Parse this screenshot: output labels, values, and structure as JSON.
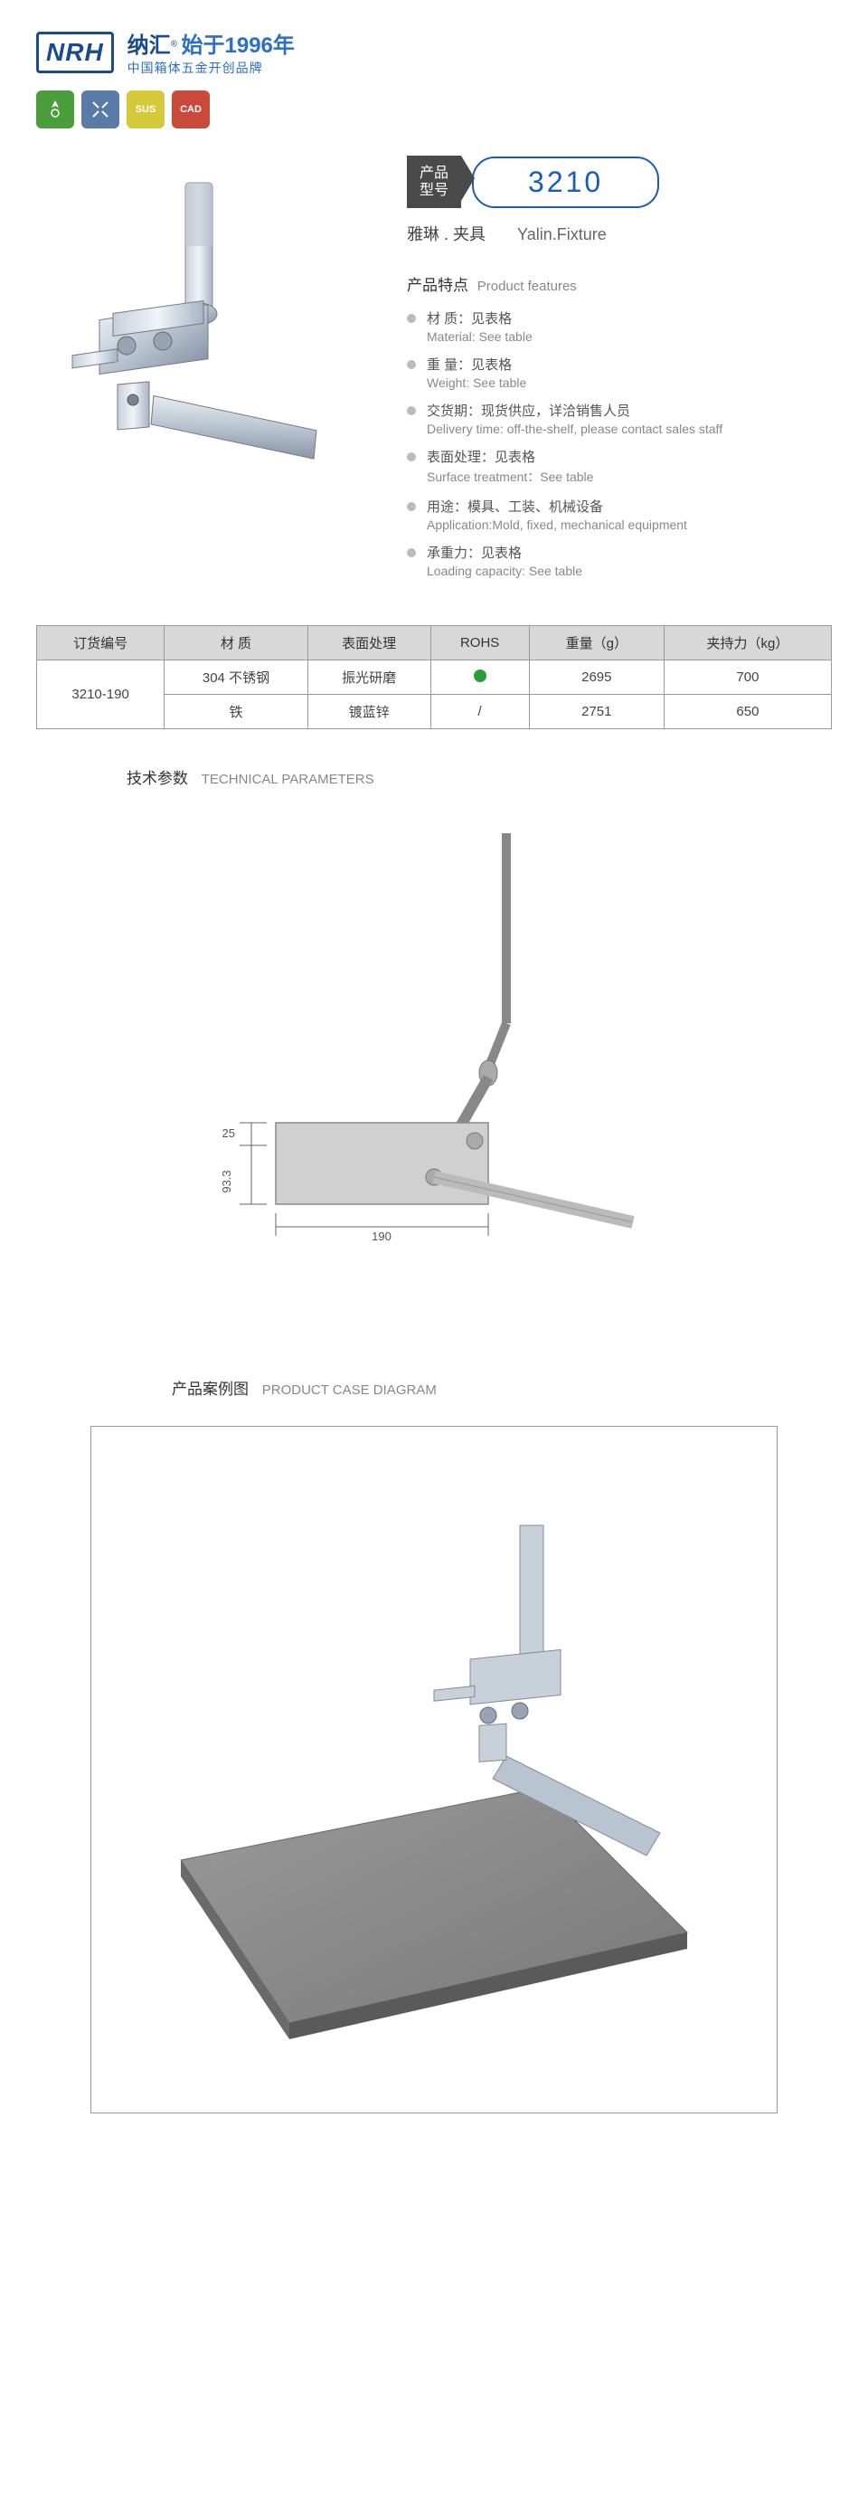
{
  "header": {
    "logo": "NRH",
    "brand_cn": "纳汇",
    "brand_year": "始于1996年",
    "brand_sub": "中国箱体五金开创品牌"
  },
  "badges": [
    {
      "label": "",
      "color": "badge-green"
    },
    {
      "label": "",
      "color": "badge-blue"
    },
    {
      "label": "SUS",
      "color": "badge-yellow"
    },
    {
      "label": "CAD",
      "color": "badge-red"
    }
  ],
  "model": {
    "label_line1": "产品",
    "label_line2": "型号",
    "number": "3210"
  },
  "product_name": {
    "cn": "雅琳 . 夹具",
    "en": "Yalin.Fixture"
  },
  "features_title": {
    "cn": "产品特点",
    "en": "Product features"
  },
  "features": [
    {
      "cn": "材  质：见表格",
      "en": "Material: See table"
    },
    {
      "cn": "重  量：见表格",
      "en": "Weight: See table"
    },
    {
      "cn": "交货期：现货供应，详洽销售人员",
      "en": "Delivery time: off-the-shelf, please contact sales staff"
    },
    {
      "cn": "表面处理：见表格",
      "en": "Surface treatment：See table"
    },
    {
      "cn": "用途：模具、工装、机械设备",
      "en": "Application:Mold, fixed, mechanical equipment"
    },
    {
      "cn": "承重力：见表格",
      "en": "Loading capacity: See table"
    }
  ],
  "spec_table": {
    "headers": [
      "订货编号",
      "材    质",
      "表面处理",
      "ROHS",
      "重量（g）",
      "夹持力（kg）"
    ],
    "code_rowspan": "3210-190",
    "rows": [
      {
        "material": "304 不锈钢",
        "surface": "振光研磨",
        "rohs": "dot",
        "weight": "2695",
        "force": "700"
      },
      {
        "material": "铁",
        "surface": "镀蓝锌",
        "rohs": "/",
        "weight": "2751",
        "force": "650"
      }
    ]
  },
  "tech_params": {
    "cn": "技术参数",
    "en": "TECHNICAL PARAMETERS",
    "dims": {
      "h1": "25",
      "h2": "93.3",
      "w": "190"
    }
  },
  "case_diagram": {
    "cn": "产品案例图",
    "en": "PRODUCT CASE DIAGRAM"
  },
  "colors": {
    "primary": "#1a5db8",
    "dark": "#4a4a4a",
    "border": "#999999",
    "th_bg": "#d8d8d8"
  }
}
